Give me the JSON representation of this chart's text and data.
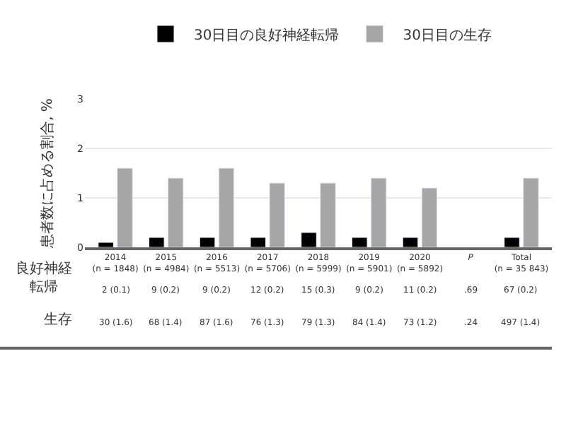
{
  "chart_data": {
    "type": "bar",
    "ylabel": "患者数に占める割合, %",
    "categories": [
      "2014\n(n = 1848)",
      "2015\n(n = 4984)",
      "2016\n(n = 5513)",
      "2017\n(n = 5706)",
      "2018\n(n = 5999)",
      "2019\n(n = 5901)",
      "2020\n(n = 5892)",
      "P",
      "Total\n(n = 35 843)"
    ],
    "series": [
      {
        "name": "30日目の良好神経転帰",
        "color": "#000000",
        "values": [
          0.1,
          0.2,
          0.2,
          0.2,
          0.3,
          0.2,
          0.2,
          null,
          0.2
        ],
        "value_labels": [
          "2 (0.1)",
          "9 (0.2)",
          "9 (0.2)",
          "12 (0.2)",
          "15 (0.3)",
          "9 (0.2)",
          "11 (0.2)",
          ".69",
          "67 (0.2)"
        ]
      },
      {
        "name": "30日目の生存",
        "color": "#a6a6a6",
        "values": [
          1.6,
          1.4,
          1.6,
          1.3,
          1.3,
          1.4,
          1.2,
          null,
          1.4
        ],
        "value_labels": [
          "30 (1.6)",
          "68 (1.4)",
          "87 (1.6)",
          "76 (1.3)",
          "79 (1.3)",
          "84 (1.4)",
          "73 (1.2)",
          ".24",
          "497 (1.4)"
        ]
      }
    ],
    "annotations": [
      "良好神経転帰",
      "生存"
    ],
    "ylim": [
      0,
      3
    ],
    "yticks": [
      0,
      1,
      2,
      3
    ],
    "grid": "y",
    "legend": "top"
  }
}
